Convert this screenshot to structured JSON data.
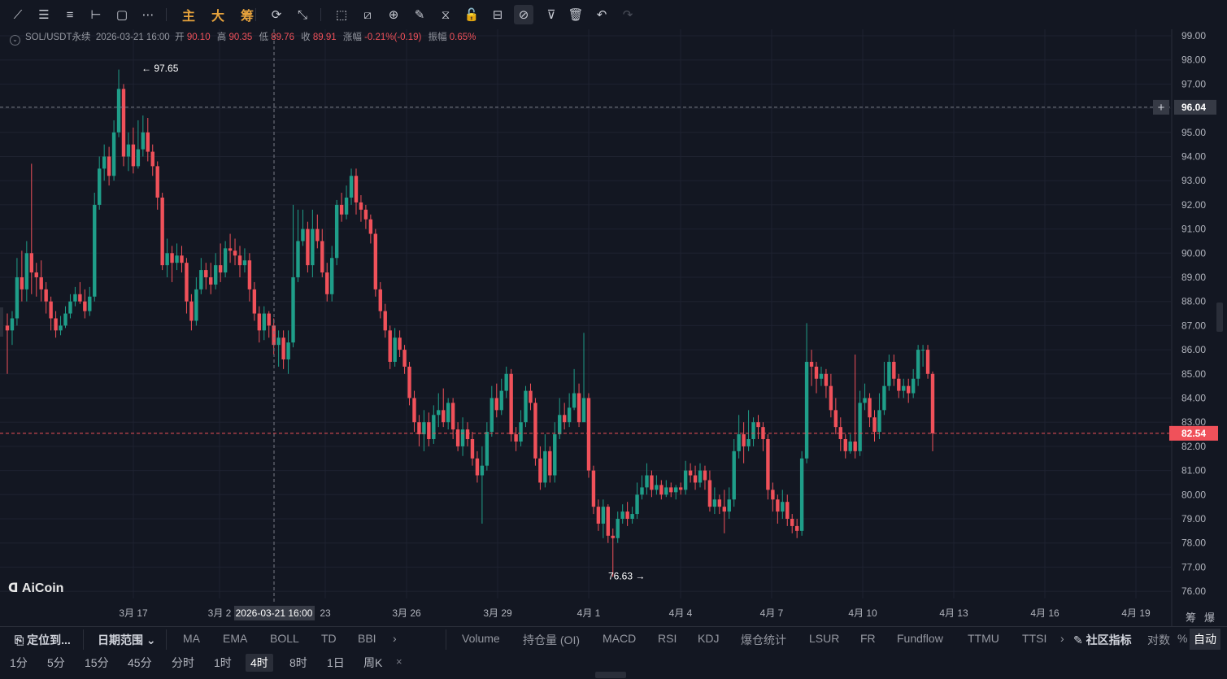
{
  "toolbar": {
    "tools": [
      {
        "name": "trend-line-icon",
        "glyph": "⟋"
      },
      {
        "name": "horizontal-lines-icon",
        "glyph": "☰"
      },
      {
        "name": "parallel-channel-icon",
        "glyph": "≡"
      },
      {
        "name": "horizontal-ray-icon",
        "glyph": "⊢"
      },
      {
        "name": "rectangle-icon",
        "glyph": "▢"
      },
      {
        "name": "more-shapes-icon",
        "glyph": "⋯"
      },
      {
        "name": "zhu-button",
        "text": "主"
      },
      {
        "name": "da-button",
        "text": "大"
      },
      {
        "name": "chou-button",
        "text": "筹"
      },
      {
        "name": "cycle-icon",
        "glyph": "⟳"
      },
      {
        "name": "measure-icon",
        "glyph": "⤡"
      },
      {
        "name": "cursor-icon",
        "glyph": "⬚"
      },
      {
        "name": "ruler-icon",
        "glyph": "⧄"
      },
      {
        "name": "zoom-in-icon",
        "glyph": "⊕"
      },
      {
        "name": "pen-icon",
        "glyph": "✎"
      },
      {
        "name": "magnet-icon",
        "glyph": "⧖"
      },
      {
        "name": "lock-icon",
        "glyph": "🔓"
      },
      {
        "name": "eye-icon",
        "glyph": "⊟"
      },
      {
        "name": "hide-drawings-icon",
        "glyph": "⊘"
      },
      {
        "name": "filter-icon",
        "glyph": "⊽"
      },
      {
        "name": "trash-icon",
        "glyph": "🗑"
      },
      {
        "name": "undo-icon",
        "glyph": "↶"
      },
      {
        "name": "redo-icon",
        "glyph": "↷"
      }
    ]
  },
  "info": {
    "symbol": "SOL/USDT永续",
    "time": "2026-03-21 16:00",
    "open_label": "开",
    "open": "90.10",
    "high_label": "高",
    "high": "90.35",
    "low_label": "低",
    "low": "89.76",
    "close_label": "收",
    "close": "89.91",
    "change_label": "涨幅",
    "change": "-0.21%(-0.19)",
    "amplitude_label": "振幅",
    "amplitude": "0.65%"
  },
  "chart_data": {
    "type": "candlestick",
    "symbol": "SOL/USDT永续",
    "interval": "4时",
    "y_ticks": [
      "99.00",
      "98.00",
      "97.00",
      "96.00",
      "95.00",
      "94.00",
      "93.00",
      "92.00",
      "91.00",
      "90.00",
      "89.00",
      "88.00",
      "87.00",
      "86.00",
      "85.00",
      "84.00",
      "83.00",
      "82.00",
      "81.00",
      "80.00",
      "79.00",
      "78.00",
      "77.00",
      "76.00"
    ],
    "ylim": [
      75.5,
      99.5
    ],
    "x_ticks": [
      "3月 17",
      "3月 2",
      "23",
      "3月 26",
      "3月 29",
      "4月 1",
      "4月 4",
      "4月 7",
      "4月 10",
      "4月 13",
      "4月 16",
      "4月 19"
    ],
    "crosshair_price": "96.04",
    "crosshair_time": "2026-03-21 16:00",
    "last_price": "82.54",
    "high_marker": "97.65",
    "low_marker": "76.63",
    "candles": [
      [
        87,
        86.8,
        87.5,
        85
      ],
      [
        86.8,
        87.3,
        87.6,
        86.2
      ],
      [
        87.3,
        89,
        89.8,
        87
      ],
      [
        89,
        88.5,
        90.1,
        88
      ],
      [
        88.5,
        90,
        90.5,
        88
      ],
      [
        90,
        89.2,
        93.7,
        88.3
      ],
      [
        89.2,
        89,
        89.6,
        88.2
      ],
      [
        89,
        88.5,
        89.7,
        88
      ],
      [
        88.5,
        88,
        88.8,
        87.5
      ],
      [
        88,
        87.3,
        88.2,
        86.8
      ],
      [
        87.3,
        86.8,
        87.6,
        86.5
      ],
      [
        86.8,
        87,
        87.4,
        86.6
      ],
      [
        87,
        87.5,
        87.8,
        86.9
      ],
      [
        87.5,
        88,
        88.3,
        87.3
      ],
      [
        88,
        88.3,
        88.6,
        87.8
      ],
      [
        88.3,
        88,
        88.8,
        87.9
      ],
      [
        88,
        87.6,
        88.5,
        87.3
      ],
      [
        87.6,
        88.2,
        88.6,
        87.4
      ],
      [
        88.2,
        92,
        92.5,
        88
      ],
      [
        92,
        93.5,
        94,
        91.8
      ],
      [
        93.5,
        94,
        94.5,
        93
      ],
      [
        94,
        93.2,
        94.4,
        92.8
      ],
      [
        93.2,
        95,
        95.5,
        93
      ],
      [
        95,
        96.8,
        97.6,
        94.8
      ],
      [
        96.8,
        94,
        97,
        93.6
      ],
      [
        94,
        94.5,
        95,
        93.4
      ],
      [
        94.5,
        93.6,
        95.2,
        93.3
      ],
      [
        93.6,
        94.3,
        95.5,
        93.5
      ],
      [
        94.3,
        95,
        95.7,
        94
      ],
      [
        95,
        94.2,
        95.6,
        93.8
      ],
      [
        94.2,
        93.6,
        94.5,
        93.2
      ],
      [
        93.6,
        92.3,
        93.8,
        91.8
      ],
      [
        92.3,
        89.5,
        92.5,
        89.3
      ],
      [
        89.5,
        90,
        90.6,
        89
      ],
      [
        90,
        89.6,
        90.3,
        88.8
      ],
      [
        89.6,
        89.9,
        90.4,
        89.3
      ],
      [
        89.9,
        89.6,
        90.3,
        89.2
      ],
      [
        89.6,
        88,
        89.8,
        87.5
      ],
      [
        88,
        87.2,
        88.3,
        86.8
      ],
      [
        87.2,
        88.5,
        89,
        87
      ],
      [
        88.5,
        89.3,
        89.8,
        88.3
      ],
      [
        89.3,
        89,
        89.6,
        88.5
      ],
      [
        89,
        88.7,
        89.6,
        88.3
      ],
      [
        88.7,
        89.5,
        90,
        88.5
      ],
      [
        89.5,
        89.2,
        90.4,
        88.8
      ],
      [
        89.2,
        90.2,
        90.5,
        89
      ],
      [
        90.2,
        90.1,
        90.8,
        89.6
      ],
      [
        90.1,
        89.9,
        90.6,
        89.5
      ],
      [
        89.9,
        89.5,
        90.3,
        89
      ],
      [
        89.5,
        89.7,
        90.2,
        89.2
      ],
      [
        89.7,
        88.5,
        90,
        88
      ],
      [
        88.5,
        87.5,
        88.8,
        87.2
      ],
      [
        87.5,
        86.8,
        87.8,
        86.3
      ],
      [
        86.8,
        87.5,
        87.8,
        86.4
      ],
      [
        87.5,
        87,
        87.6,
        86.5
      ],
      [
        87,
        86.2,
        87.3,
        85.8
      ],
      [
        86.2,
        86.5,
        86.8,
        85.3
      ],
      [
        86.5,
        85.6,
        86.8,
        85.2
      ],
      [
        85.6,
        86.3,
        86.8,
        85
      ],
      [
        86.3,
        89,
        92,
        86.1
      ],
      [
        89,
        90.5,
        91.8,
        88.8
      ],
      [
        90.5,
        91,
        91.8,
        90.3
      ],
      [
        91,
        89.5,
        91.3,
        89.2
      ],
      [
        89.5,
        91,
        91.8,
        89
      ],
      [
        91,
        90.5,
        91.6,
        90.2
      ],
      [
        90.5,
        89.2,
        91,
        89
      ],
      [
        89.2,
        88.3,
        89.6,
        88
      ],
      [
        88.3,
        89.8,
        90.3,
        88
      ],
      [
        89.8,
        92,
        92.2,
        89.5
      ],
      [
        92,
        91.6,
        92.5,
        91.3
      ],
      [
        91.6,
        92.3,
        92.8,
        91.4
      ],
      [
        92.3,
        93.2,
        93.5,
        92
      ],
      [
        93.2,
        92.1,
        93.5,
        91.6
      ],
      [
        92.1,
        91.8,
        92.4,
        91.3
      ],
      [
        91.8,
        91.4,
        92,
        91
      ],
      [
        91.4,
        90.8,
        91.6,
        90.4
      ],
      [
        90.8,
        88.5,
        91,
        88.2
      ],
      [
        88.5,
        87.6,
        88.8,
        87.3
      ],
      [
        87.6,
        86.8,
        87.9,
        86.5
      ],
      [
        86.8,
        85.5,
        87,
        85.2
      ],
      [
        85.5,
        86.5,
        86.9,
        85.3
      ],
      [
        86.5,
        86,
        86.8,
        85.7
      ],
      [
        86,
        85.3,
        86.2,
        85
      ],
      [
        85.3,
        84,
        85.5,
        83.7
      ],
      [
        84,
        83,
        84.3,
        82.6
      ],
      [
        83,
        82.5,
        83.3,
        82
      ],
      [
        82.5,
        83,
        83.5,
        81.8
      ],
      [
        83,
        82.3,
        83.4,
        82
      ],
      [
        82.3,
        83.3,
        83.7,
        82.1
      ],
      [
        83.3,
        83.5,
        84.2,
        82.8
      ],
      [
        83.5,
        83,
        84.4,
        82.8
      ],
      [
        83,
        83.8,
        84,
        82.7
      ],
      [
        83.8,
        82.7,
        84,
        82.3
      ],
      [
        82.7,
        82,
        83,
        81.8
      ],
      [
        82,
        82.7,
        83.2,
        81.6
      ],
      [
        82.7,
        82.3,
        83,
        82
      ],
      [
        82.3,
        81.5,
        82.6,
        81.2
      ],
      [
        81.5,
        80.8,
        81.8,
        80.5
      ],
      [
        80.8,
        81.2,
        82,
        78.8
      ],
      [
        81.2,
        82.6,
        83,
        81
      ],
      [
        82.6,
        84,
        84.5,
        82.4
      ],
      [
        84,
        83.5,
        84.6,
        83.2
      ],
      [
        83.5,
        84.3,
        84.8,
        83.3
      ],
      [
        84.3,
        85,
        85.3,
        84
      ],
      [
        85,
        82.5,
        85.2,
        82.2
      ],
      [
        82.5,
        82.2,
        82.8,
        81.8
      ],
      [
        82.2,
        83,
        83.5,
        82
      ],
      [
        83,
        84.3,
        84.5,
        82.8
      ],
      [
        84.3,
        83.8,
        84.6,
        83.5
      ],
      [
        83.8,
        81.5,
        84,
        81.2
      ],
      [
        81.5,
        80.5,
        82,
        80.2
      ],
      [
        80.5,
        81.8,
        82.5,
        80.3
      ],
      [
        81.8,
        80.8,
        82,
        80.5
      ],
      [
        80.8,
        82.5,
        83,
        80.5
      ],
      [
        82.5,
        83.3,
        84,
        82.3
      ],
      [
        83.3,
        83,
        83.8,
        82.7
      ],
      [
        83,
        83.6,
        84.2,
        82.8
      ],
      [
        83.6,
        84.2,
        85.2,
        83.5
      ],
      [
        84.2,
        83,
        84.6,
        82.8
      ],
      [
        83,
        84,
        86.7,
        83.8
      ],
      [
        84,
        81,
        84.2,
        80.7
      ],
      [
        81,
        79.5,
        81.2,
        79.2
      ],
      [
        79.5,
        78.8,
        79.8,
        78.5
      ],
      [
        78.8,
        79.5,
        79.8,
        78.2
      ],
      [
        79.5,
        78.3,
        79.6,
        78
      ],
      [
        78.3,
        78.2,
        78.6,
        76.6
      ],
      [
        78.2,
        79,
        79.3,
        78
      ],
      [
        79,
        79.3,
        79.6,
        78.8
      ],
      [
        79.3,
        79,
        79.7,
        78.7
      ],
      [
        79,
        79.2,
        79.5,
        78.8
      ],
      [
        79.2,
        80,
        80.5,
        79
      ],
      [
        80,
        80.3,
        80.8,
        79.8
      ],
      [
        80.3,
        80.8,
        81.3,
        80
      ],
      [
        80.8,
        80.2,
        81,
        79.9
      ],
      [
        80.2,
        80.4,
        80.8,
        80
      ],
      [
        80.4,
        80,
        80.6,
        79.8
      ],
      [
        80,
        80.3,
        80.6,
        79.9
      ],
      [
        80.3,
        80.1,
        80.5,
        79.9
      ],
      [
        80.1,
        80.3,
        80.4,
        79.8
      ],
      [
        80.3,
        80.2,
        80.5,
        80
      ],
      [
        80.2,
        81,
        81.4,
        80
      ],
      [
        81,
        80.8,
        81.3,
        80.5
      ],
      [
        80.8,
        80.5,
        81.2,
        80.2
      ],
      [
        80.5,
        81,
        81.3,
        80.3
      ],
      [
        81,
        80.6,
        81.2,
        80.2
      ],
      [
        80.6,
        79.5,
        81,
        79.3
      ],
      [
        79.5,
        79.8,
        80.3,
        79.2
      ],
      [
        79.8,
        79.5,
        80,
        79.2
      ],
      [
        79.5,
        79.3,
        80.2,
        78.4
      ],
      [
        79.3,
        79.8,
        80.3,
        79
      ],
      [
        79.8,
        81.8,
        82.3,
        79.5
      ],
      [
        81.8,
        82.5,
        83.3,
        81.5
      ],
      [
        82.5,
        82,
        83,
        81.3
      ],
      [
        82,
        82.3,
        83.5,
        81.8
      ],
      [
        82.3,
        83,
        83.2,
        82
      ],
      [
        83,
        82.8,
        83.3,
        82.3
      ],
      [
        82.8,
        82.3,
        83,
        81.8
      ],
      [
        82.3,
        80.2,
        82.5,
        79.8
      ],
      [
        80.2,
        79.8,
        80.5,
        79.3
      ],
      [
        79.8,
        79.3,
        80,
        78.8
      ],
      [
        79.3,
        79.7,
        80.2,
        79
      ],
      [
        79.7,
        79,
        80,
        78.7
      ],
      [
        79,
        78.7,
        79.2,
        78.4
      ],
      [
        78.7,
        78.5,
        79,
        78.2
      ],
      [
        78.5,
        81.5,
        81.8,
        78.3
      ],
      [
        81.5,
        85.5,
        87.1,
        81.3
      ],
      [
        85.5,
        85.3,
        86,
        84.5
      ],
      [
        85.3,
        84.8,
        85.5,
        84.2
      ],
      [
        84.8,
        85,
        85.3,
        84.5
      ],
      [
        85,
        84.5,
        85.2,
        84
      ],
      [
        84.5,
        83.5,
        85,
        83.2
      ],
      [
        83.5,
        82.8,
        84,
        82.5
      ],
      [
        82.8,
        82.3,
        83.2,
        81.8
      ],
      [
        82.3,
        81.8,
        82.5,
        81.5
      ],
      [
        81.8,
        82.2,
        82.5,
        81.7
      ],
      [
        82.2,
        81.8,
        85.8,
        81.5
      ],
      [
        81.8,
        83.8,
        84.3,
        81.6
      ],
      [
        83.8,
        84,
        84.6,
        83.5
      ],
      [
        84,
        83.2,
        84.2,
        82.8
      ],
      [
        83.2,
        82.6,
        83.5,
        82.2
      ],
      [
        82.6,
        83.5,
        84.2,
        82.3
      ],
      [
        83.5,
        84.5,
        85.5,
        83.3
      ],
      [
        84.5,
        85.5,
        85.8,
        84.3
      ],
      [
        85.5,
        84.8,
        85.8,
        84.5
      ],
      [
        84.8,
        84.3,
        85,
        84
      ],
      [
        84.3,
        84.5,
        84.8,
        84
      ],
      [
        84.5,
        84.2,
        84.8,
        83.8
      ],
      [
        84.2,
        84.8,
        85.2,
        84
      ],
      [
        84.8,
        86,
        86.2,
        84.5
      ],
      [
        86,
        86,
        86.2,
        85.3
      ],
      [
        86,
        85,
        86.2,
        84.8
      ],
      [
        85,
        82.54,
        85.1,
        81.8
      ]
    ]
  },
  "logo_text": "AiCoin",
  "bottom": {
    "locate_label": "定位到...",
    "date_range_label": "日期范围",
    "indicators_left": [
      "MA",
      "EMA",
      "BOLL",
      "TD",
      "BBI"
    ],
    "indicators_right": [
      "Volume",
      "持仓量 (OI)",
      "MACD",
      "RSI",
      "KDJ",
      "爆仓统计",
      "LSUR",
      "FR",
      "Fundflow",
      "TTMU",
      "TTSI"
    ],
    "community_label": "社区指标",
    "log_label": "对数",
    "pct_label": "%",
    "auto_label": "自动",
    "axis_corner_1": "筹",
    "axis_corner_2": "爆"
  },
  "timeframes": [
    "1分",
    "5分",
    "15分",
    "45分",
    "分时",
    "1时",
    "4时",
    "8时",
    "1日",
    "周K"
  ],
  "active_timeframe": "4时",
  "colors": {
    "up": "#1f9e89",
    "down": "#f0515a",
    "bg": "#131722",
    "grid": "#1e2230",
    "crosshair": "#787b86"
  }
}
